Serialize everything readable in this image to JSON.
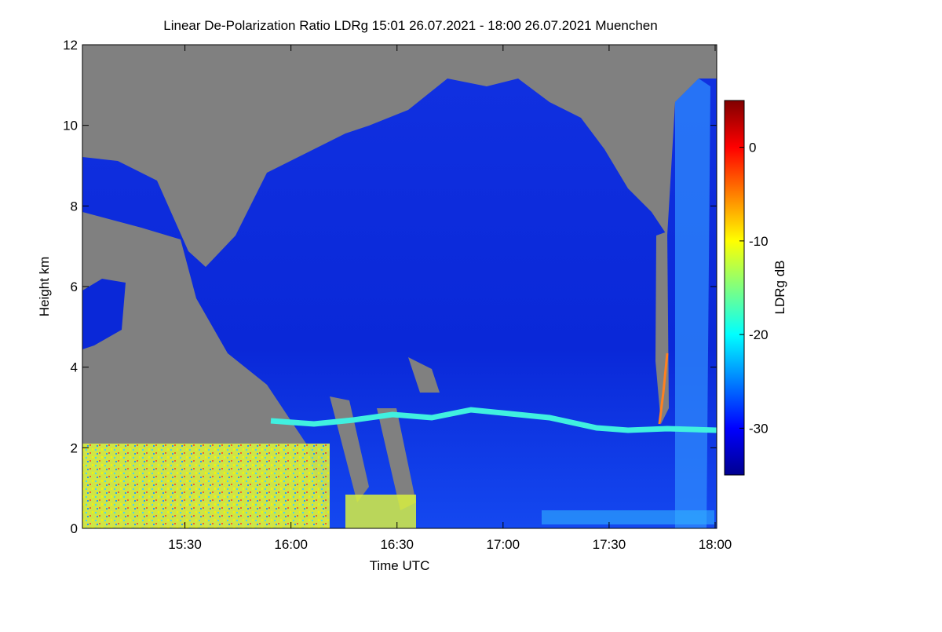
{
  "chart_data": {
    "type": "heatmap",
    "title": "Linear De-Polarization Ratio LDRg   15:01 26.07.2021 - 18:00 26.07.2021 Muenchen",
    "xlabel": "Time UTC",
    "ylabel": "Height km",
    "xlim": [
      "15:01",
      "18:00"
    ],
    "xticks": [
      "15:30",
      "16:00",
      "16:30",
      "17:00",
      "17:30",
      "18:00"
    ],
    "ylim": [
      0,
      12
    ],
    "yticks": [
      0,
      2,
      4,
      6,
      8,
      10,
      12
    ],
    "colorbar": {
      "label": "LDRg dB",
      "lim": [
        -35,
        5
      ],
      "ticks": [
        0,
        -10,
        -20,
        -30
      ],
      "colormap": "jet"
    }
  }
}
